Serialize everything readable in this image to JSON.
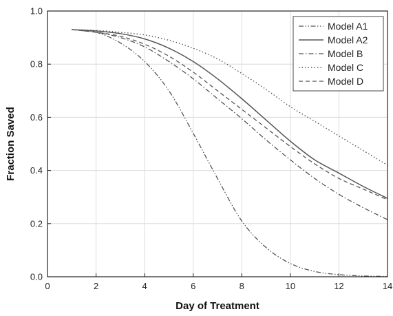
{
  "chart_data": {
    "type": "line",
    "xlabel": "Day of Treatment",
    "ylabel": "Fraction Saved",
    "xlim": [
      0,
      14
    ],
    "ylim": [
      0,
      1.0
    ],
    "xticks": [
      0,
      2,
      4,
      6,
      8,
      10,
      12,
      14
    ],
    "yticks": [
      0.0,
      0.2,
      0.4,
      0.6,
      0.8,
      1.0
    ],
    "xtick_labels": [
      "0",
      "2",
      "4",
      "6",
      "8",
      "10",
      "12",
      "14"
    ],
    "ytick_labels": [
      "0.0",
      "0.2",
      "0.4",
      "0.6",
      "0.8",
      "1.0"
    ],
    "grid": true,
    "legend_position": "top-right",
    "x": [
      1,
      2,
      3,
      4,
      5,
      6,
      7,
      8,
      9,
      10,
      11,
      12,
      13,
      14
    ],
    "series": [
      {
        "name": "Model A1",
        "style": "dash-dot-dot",
        "values": [
          0.93,
          0.92,
          0.88,
          0.81,
          0.7,
          0.54,
          0.37,
          0.21,
          0.11,
          0.05,
          0.02,
          0.008,
          0.003,
          0.001
        ]
      },
      {
        "name": "Model A2",
        "style": "solid",
        "values": [
          0.93,
          0.925,
          0.915,
          0.895,
          0.86,
          0.81,
          0.745,
          0.67,
          0.59,
          0.51,
          0.44,
          0.39,
          0.34,
          0.295
        ]
      },
      {
        "name": "Model B",
        "style": "dash-dot",
        "values": [
          0.93,
          0.92,
          0.9,
          0.865,
          0.81,
          0.745,
          0.67,
          0.595,
          0.515,
          0.44,
          0.37,
          0.31,
          0.26,
          0.215
        ]
      },
      {
        "name": "Model C",
        "style": "dotted",
        "values": [
          0.93,
          0.927,
          0.92,
          0.91,
          0.89,
          0.86,
          0.82,
          0.765,
          0.705,
          0.64,
          0.585,
          0.53,
          0.475,
          0.42
        ]
      },
      {
        "name": "Model D",
        "style": "dashed",
        "values": [
          0.93,
          0.92,
          0.905,
          0.875,
          0.83,
          0.77,
          0.7,
          0.63,
          0.56,
          0.49,
          0.425,
          0.37,
          0.33,
          0.29
        ]
      }
    ]
  }
}
